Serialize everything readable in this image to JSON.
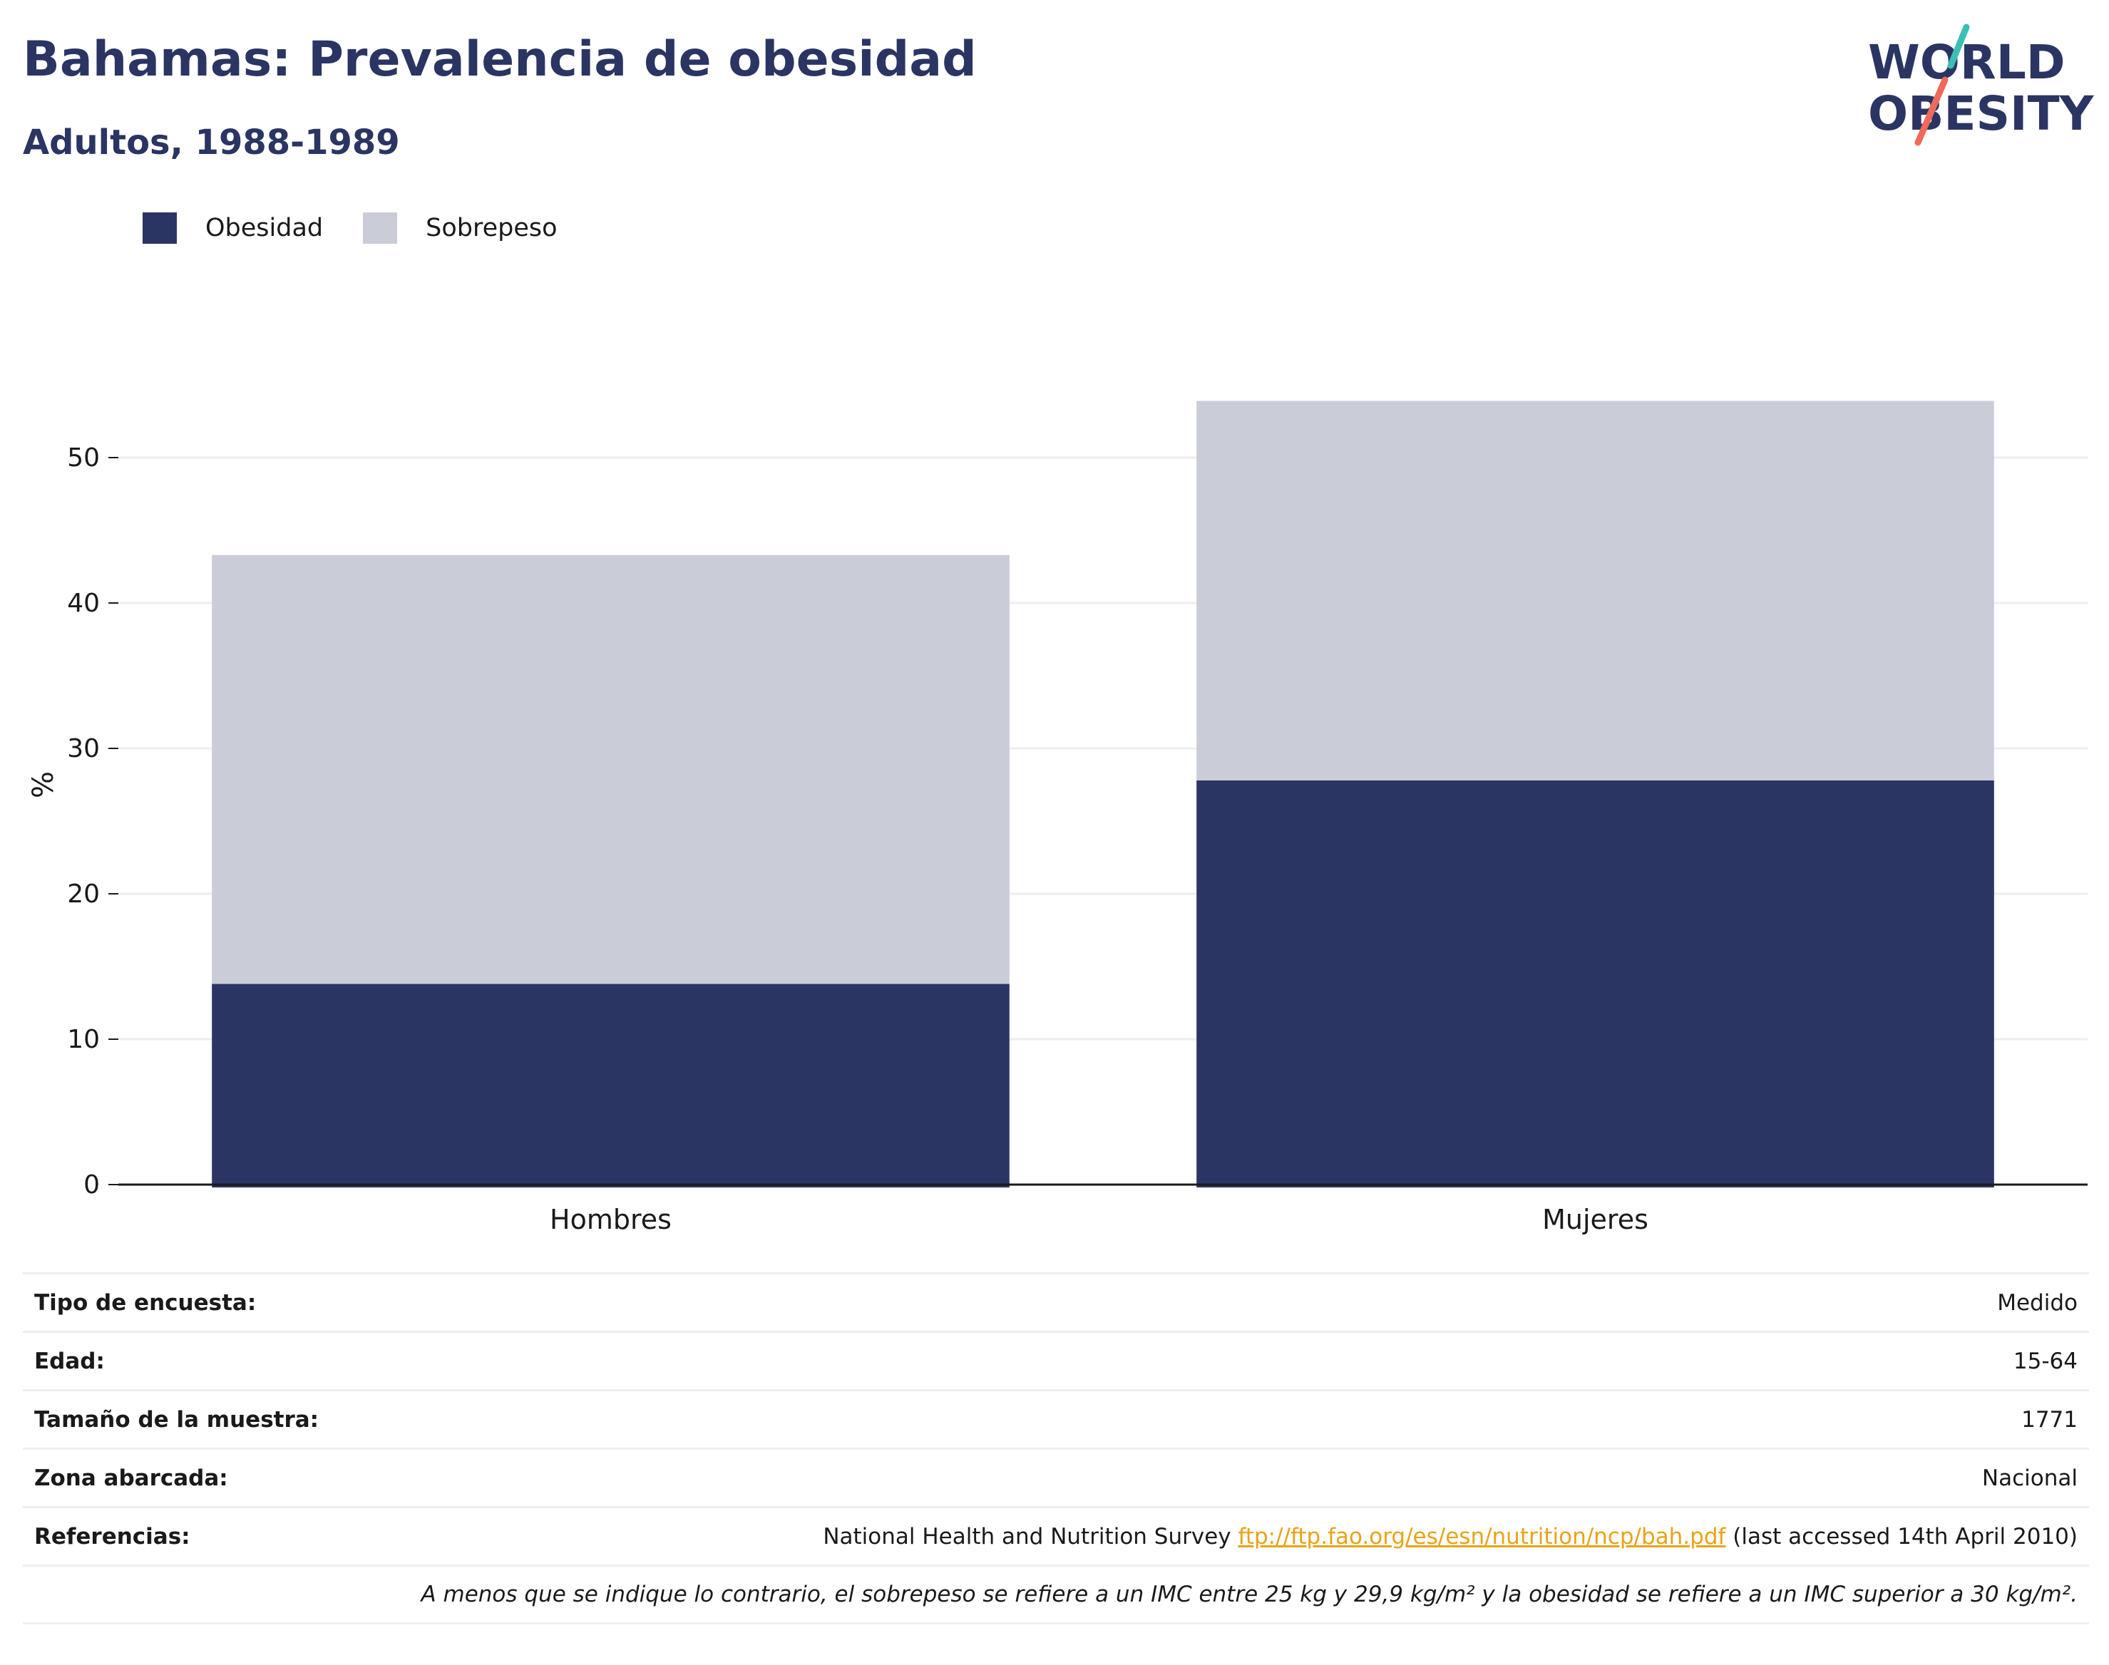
{
  "header": {
    "title": "Bahamas: Prevalencia de obesidad",
    "subtitle": "Adultos, 1988-1989"
  },
  "logo": {
    "line1": "WORLD",
    "line2": "OBESITY"
  },
  "colors": {
    "obesity": "#2a3563",
    "overweight": "#cacdd8",
    "text": "#1a1a1a",
    "grid": "#eceef4",
    "link": "#e8a317"
  },
  "legend": [
    {
      "label": "Obesidad",
      "color": "#2a3563"
    },
    {
      "label": "Sobrepeso",
      "color": "#cacdd8"
    }
  ],
  "chart_data": {
    "type": "bar",
    "stacked": true,
    "categories": [
      "Hombres",
      "Mujeres"
    ],
    "series": [
      {
        "name": "Obesidad",
        "values": [
          13.8,
          27.8
        ]
      },
      {
        "name": "Sobrepeso",
        "values": [
          29.5,
          26.1
        ]
      }
    ],
    "ylabel": "%",
    "ylim": [
      0,
      55
    ],
    "yticks": [
      0,
      10,
      20,
      30,
      40,
      50
    ],
    "grid": true,
    "legend_position": "top-left"
  },
  "info": {
    "rows": [
      {
        "label": "Tipo de encuesta:",
        "value": "Medido"
      },
      {
        "label": "Edad:",
        "value": "15-64"
      },
      {
        "label": "Tamaño de la muestra:",
        "value": "1771"
      },
      {
        "label": "Zona abarcada:",
        "value": "Nacional"
      }
    ],
    "references": {
      "label": "Referencias:",
      "text_before": "National Health and Nutrition Survey ",
      "link": "ftp://ftp.fao.org/es/esn/nutrition/ncp/bah.pdf",
      "text_after": " (last accessed 14th April 2010)"
    },
    "note": "A menos que se indique lo contrario, el sobrepeso se refiere a un IMC entre 25 kg y 29,9 kg/m² y la obesidad se refiere a un IMC superior a 30 kg/m²."
  }
}
